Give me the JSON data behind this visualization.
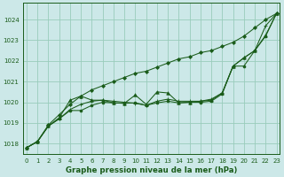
{
  "title": "Graphe pression niveau de la mer (hPa)",
  "bg_color": "#cce8e8",
  "grid_color": "#99ccbb",
  "line_color": "#1a5c1a",
  "ylim": [
    1017.5,
    1024.8
  ],
  "xlim": [
    -0.3,
    23.3
  ],
  "yticks": [
    1018,
    1019,
    1020,
    1021,
    1022,
    1023,
    1024
  ],
  "xticks": [
    0,
    1,
    2,
    3,
    4,
    5,
    6,
    7,
    8,
    9,
    10,
    11,
    12,
    13,
    14,
    15,
    16,
    17,
    18,
    19,
    20,
    21,
    22,
    23
  ],
  "series": [
    {
      "name": "s1_straight",
      "y": [
        1017.8,
        1018.1,
        1018.9,
        1019.4,
        1019.9,
        1020.3,
        1020.6,
        1020.8,
        1021.0,
        1021.2,
        1021.4,
        1021.5,
        1021.7,
        1021.9,
        1022.1,
        1022.2,
        1022.4,
        1022.5,
        1022.7,
        1022.9,
        1023.2,
        1023.6,
        1024.0,
        1024.3
      ],
      "marker": "D",
      "markersize": 2.0
    },
    {
      "name": "s2_cross",
      "y": [
        1017.8,
        1018.1,
        1018.85,
        1019.2,
        1019.65,
        1019.9,
        1020.05,
        1020.1,
        1020.05,
        1020.0,
        1019.95,
        1019.85,
        1020.05,
        1020.15,
        1020.05,
        1020.05,
        1020.05,
        1020.15,
        1020.45,
        1021.75,
        1022.15,
        1022.5,
        1023.7,
        1024.3
      ],
      "marker": "+",
      "markersize": 3.5
    },
    {
      "name": "s3_triangle",
      "y": [
        1017.8,
        1018.1,
        1018.85,
        1019.25,
        1020.1,
        1020.3,
        1020.1,
        1020.1,
        1019.97,
        1019.95,
        1020.35,
        1019.9,
        1020.5,
        1020.45,
        1019.97,
        1020.0,
        1020.05,
        1020.1,
        1020.45,
        1021.75,
        1022.15,
        1022.5,
        1023.25,
        1024.3
      ],
      "marker": "^",
      "markersize": 2.5
    },
    {
      "name": "s4_circle",
      "y": [
        1017.8,
        1018.1,
        1018.85,
        1019.2,
        1019.6,
        1019.6,
        1019.85,
        1020.0,
        1019.97,
        1019.95,
        1019.97,
        1019.85,
        1019.97,
        1020.05,
        1019.97,
        1020.0,
        1020.0,
        1020.05,
        1020.4,
        1021.75,
        1021.75,
        1022.5,
        1023.2,
        1024.3
      ],
      "marker": "o",
      "markersize": 2.0
    }
  ]
}
